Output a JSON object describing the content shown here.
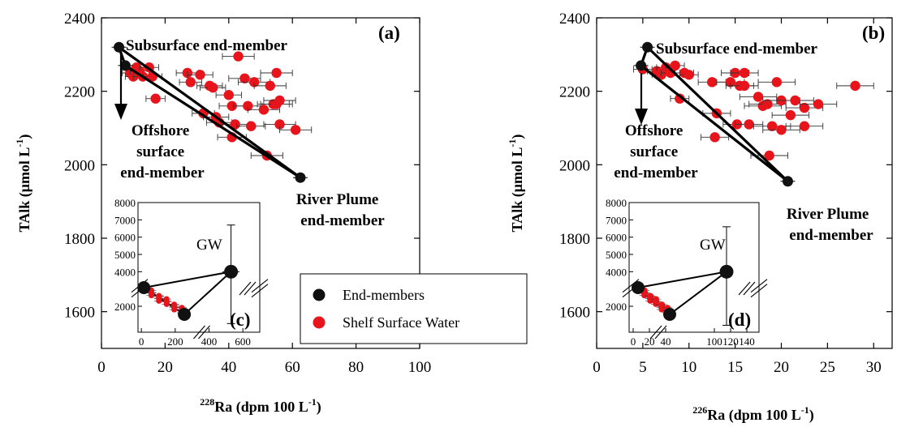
{
  "chart_data": [
    {
      "type": "scatter",
      "panel": "a",
      "panel_label": "(a)",
      "xlabel": {
        "sup": "228",
        "main": "Ra (dpm 100 L",
        "exp": "-1",
        "close": ")"
      },
      "ylabel": {
        "main": "TAlk (μmol L",
        "exp": "-1",
        "close": ")"
      },
      "xlim": [
        0,
        100
      ],
      "ylim": [
        1500,
        2400
      ],
      "xticks": [
        0,
        20,
        40,
        60,
        80,
        100
      ],
      "yticks": [
        1600,
        1800,
        2000,
        2200,
        2400
      ],
      "end_members": [
        {
          "name": "Subsurface end-member",
          "x": 5.5,
          "y": 2320,
          "label_lines": [
            "Subsurface end-member"
          ]
        },
        {
          "name": "Offshore surface end-member",
          "x": 7.5,
          "y": 2270,
          "label_lines": [
            "Offshore",
            "surface",
            "end-member"
          ]
        },
        {
          "name": "River Plume end-member",
          "x": 62.5,
          "y": 1965,
          "label_lines": [
            "River Plume",
            "end-member"
          ]
        }
      ],
      "series": [
        {
          "name": "Shelf Surface Water",
          "color": "#e8141c",
          "points": [
            {
              "x": 9,
              "y": 2250,
              "xe": 2.5
            },
            {
              "x": 10,
              "y": 2240,
              "xe": 2.5
            },
            {
              "x": 11,
              "y": 2265,
              "xe": 3
            },
            {
              "x": 12,
              "y": 2255,
              "xe": 3
            },
            {
              "x": 13,
              "y": 2240,
              "xe": 3
            },
            {
              "x": 15,
              "y": 2265,
              "xe": 3
            },
            {
              "x": 16,
              "y": 2240,
              "xe": 3
            },
            {
              "x": 17,
              "y": 2180,
              "xe": 3
            },
            {
              "x": 27,
              "y": 2250,
              "xe": 3.5
            },
            {
              "x": 28,
              "y": 2225,
              "xe": 3.5
            },
            {
              "x": 31,
              "y": 2245,
              "xe": 4
            },
            {
              "x": 32,
              "y": 2140,
              "xe": 3.5
            },
            {
              "x": 34,
              "y": 2215,
              "xe": 4
            },
            {
              "x": 35,
              "y": 2210,
              "xe": 4
            },
            {
              "x": 36,
              "y": 2130,
              "xe": 4
            },
            {
              "x": 37,
              "y": 2115,
              "xe": 4
            },
            {
              "x": 40,
              "y": 2190,
              "xe": 4
            },
            {
              "x": 41,
              "y": 2160,
              "xe": 4
            },
            {
              "x": 42,
              "y": 2110,
              "xe": 4.5
            },
            {
              "x": 41,
              "y": 2075,
              "xe": 4.5
            },
            {
              "x": 43,
              "y": 2295,
              "xe": 5
            },
            {
              "x": 45,
              "y": 2235,
              "xe": 5
            },
            {
              "x": 46,
              "y": 2160,
              "xe": 4.5
            },
            {
              "x": 47,
              "y": 2105,
              "xe": 4.5
            },
            {
              "x": 48,
              "y": 2225,
              "xe": 5
            },
            {
              "x": 51,
              "y": 2150,
              "xe": 5
            },
            {
              "x": 52,
              "y": 2025,
              "xe": 5
            },
            {
              "x": 53,
              "y": 2215,
              "xe": 5
            },
            {
              "x": 54,
              "y": 2165,
              "xe": 5
            },
            {
              "x": 55,
              "y": 2250,
              "xe": 5
            },
            {
              "x": 55,
              "y": 2165,
              "xe": 5
            },
            {
              "x": 56,
              "y": 2175,
              "xe": 5
            },
            {
              "x": 56,
              "y": 2110,
              "xe": 5
            },
            {
              "x": 61,
              "y": 2095,
              "xe": 5
            }
          ]
        }
      ],
      "inset": {
        "panel_label": "(c)",
        "gw_label": "GW",
        "xlim": [
          -20,
          700
        ],
        "ylim": [
          500,
          8000
        ],
        "xticks": [
          0,
          200,
          400,
          600
        ],
        "xtick_labels": [
          "0",
          "200",
          "400",
          "600"
        ],
        "yticks_upper": [
          4000,
          5000,
          6000,
          7000,
          8000
        ],
        "ytick_low": 2000,
        "gw": {
          "x": 530,
          "y": 4000,
          "yerr_up": 2700,
          "yerr_down": 3000,
          "xe": 50
        },
        "members": [
          {
            "x": 5,
            "y": 2320
          },
          {
            "x": 8,
            "y": 2270
          },
          {
            "x": 62,
            "y": 1965
          }
        ]
      }
    },
    {
      "type": "scatter",
      "panel": "b",
      "panel_label": "(b)",
      "xlabel": {
        "sup": "226",
        "main": "Ra (dpm 100 L",
        "exp": "-1",
        "close": ")"
      },
      "ylabel": {
        "main": "TAlk (μmol L",
        "exp": "-1",
        "close": ")"
      },
      "xlim": [
        0,
        32
      ],
      "ylim": [
        1500,
        2400
      ],
      "xticks": [
        0,
        5,
        10,
        15,
        20,
        25,
        30
      ],
      "yticks": [
        1600,
        1800,
        2000,
        2200,
        2400
      ],
      "end_members": [
        {
          "name": "Subsurface end-member",
          "x": 5.5,
          "y": 2320,
          "label_lines": [
            "Subsurface end-member"
          ]
        },
        {
          "name": "Offshore surface end-member",
          "x": 4.8,
          "y": 2270,
          "label_lines": [
            "Offshore",
            "surface",
            "end-member"
          ]
        },
        {
          "name": "River Plume end-member",
          "x": 20.7,
          "y": 1955,
          "label_lines": [
            "River Plume",
            "end-member"
          ]
        }
      ],
      "series": [
        {
          "name": "Shelf Surface Water",
          "color": "#e8141c",
          "points": [
            {
              "x": 5,
              "y": 2260,
              "xe": 1
            },
            {
              "x": 6.5,
              "y": 2255,
              "xe": 1
            },
            {
              "x": 7,
              "y": 2245,
              "xe": 1
            },
            {
              "x": 7.5,
              "y": 2265,
              "xe": 1
            },
            {
              "x": 8,
              "y": 2250,
              "xe": 1
            },
            {
              "x": 8.5,
              "y": 2270,
              "xe": 1
            },
            {
              "x": 9.5,
              "y": 2250,
              "xe": 1
            },
            {
              "x": 10,
              "y": 2245,
              "xe": 1
            },
            {
              "x": 9,
              "y": 2180,
              "xe": 1
            },
            {
              "x": 12.5,
              "y": 2225,
              "xe": 1.5
            },
            {
              "x": 13,
              "y": 2140,
              "xe": 1.5
            },
            {
              "x": 12.8,
              "y": 2075,
              "xe": 1.5
            },
            {
              "x": 14.5,
              "y": 2225,
              "xe": 1.5
            },
            {
              "x": 15,
              "y": 2250,
              "xe": 1.5
            },
            {
              "x": 15.5,
              "y": 2215,
              "xe": 1.5
            },
            {
              "x": 15.2,
              "y": 2110,
              "xe": 1.5
            },
            {
              "x": 16,
              "y": 2250,
              "xe": 1.5
            },
            {
              "x": 16,
              "y": 2215,
              "xe": 1.5
            },
            {
              "x": 16.5,
              "y": 2110,
              "xe": 1.5
            },
            {
              "x": 17.5,
              "y": 2185,
              "xe": 2
            },
            {
              "x": 18,
              "y": 2160,
              "xe": 2
            },
            {
              "x": 18.5,
              "y": 2165,
              "xe": 2
            },
            {
              "x": 18.7,
              "y": 2025,
              "xe": 2
            },
            {
              "x": 19,
              "y": 2105,
              "xe": 2
            },
            {
              "x": 19.5,
              "y": 2225,
              "xe": 2
            },
            {
              "x": 20,
              "y": 2175,
              "xe": 2
            },
            {
              "x": 20,
              "y": 2095,
              "xe": 2
            },
            {
              "x": 21,
              "y": 2135,
              "xe": 2
            },
            {
              "x": 21.5,
              "y": 2175,
              "xe": 2
            },
            {
              "x": 22.5,
              "y": 2155,
              "xe": 2
            },
            {
              "x": 22.5,
              "y": 2105,
              "xe": 2
            },
            {
              "x": 24,
              "y": 2165,
              "xe": 2
            },
            {
              "x": 28,
              "y": 2215,
              "xe": 2
            }
          ]
        }
      ],
      "inset": {
        "panel_label": "(d)",
        "gw_label": "GW",
        "xlim": [
          -5,
          155
        ],
        "ylim": [
          500,
          8000
        ],
        "xticks": [
          0,
          20,
          40,
          100,
          120,
          140
        ],
        "xtick_labels": [
          "0",
          "20",
          "40",
          "100",
          "120",
          "140"
        ],
        "yticks_upper": [
          4000,
          5000,
          6000,
          7000,
          8000
        ],
        "ytick_low": 2000,
        "gw": {
          "x": 115,
          "y": 4000,
          "yerr_up": 2600,
          "yerr_down": 3100,
          "xe": 8
        },
        "members": [
          {
            "x": 4,
            "y": 2320
          },
          {
            "x": 5,
            "y": 2270
          },
          {
            "x": 20,
            "y": 1955
          }
        ]
      }
    }
  ],
  "legend": {
    "items": [
      {
        "label": "End-members",
        "color": "#111111"
      },
      {
        "label": "Shelf Surface Water",
        "color": "#e8141c"
      }
    ]
  }
}
